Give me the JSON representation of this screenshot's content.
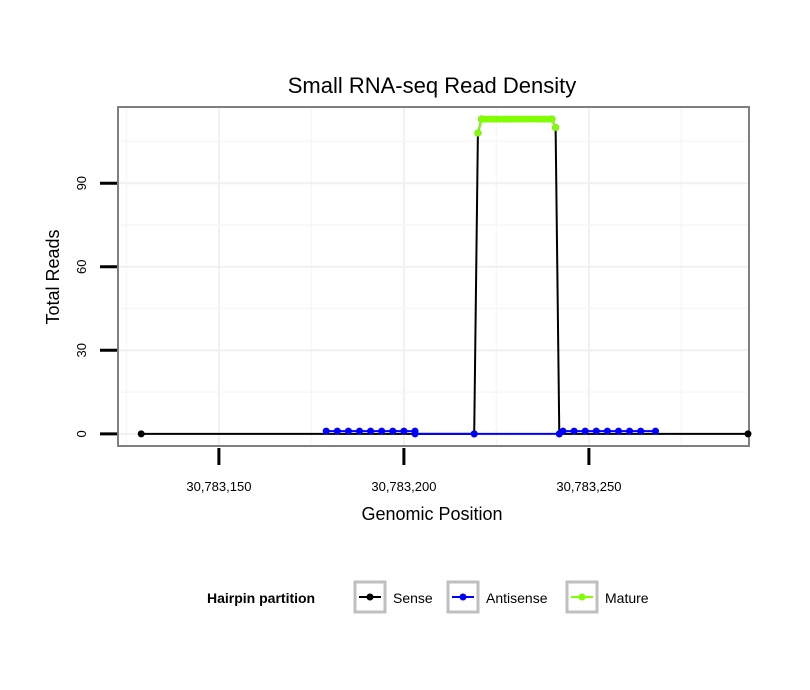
{
  "chart_data": {
    "type": "line",
    "title": "Small RNA-seq Read Density",
    "xlabel": "Genomic Position",
    "ylabel": "Total Reads",
    "xlim": [
      30783123,
      30783293
    ],
    "ylim": [
      -4,
      117
    ],
    "xticks": [
      30783150,
      30783200,
      30783250
    ],
    "xtick_labels": [
      "30,783,150",
      "30,783,200",
      "30,783,250"
    ],
    "yticks": [
      0,
      30,
      60,
      90
    ],
    "ytick_labels": [
      "0",
      "30",
      "60",
      "90"
    ],
    "grid": true,
    "legend": {
      "title": "Hairpin partition",
      "position": "bottom",
      "entries": [
        {
          "name": "Sense",
          "color": "#000000"
        },
        {
          "name": "Antisense",
          "color": "#0000ff"
        },
        {
          "name": "Mature",
          "color": "#7fff00"
        }
      ]
    },
    "series": [
      {
        "name": "Sense",
        "color": "#000000",
        "points": [
          [
            30783129,
            0
          ],
          [
            30783219,
            0
          ],
          [
            30783220,
            108
          ],
          [
            30783221,
            113
          ],
          [
            30783240,
            113
          ],
          [
            30783241,
            110
          ],
          [
            30783242,
            0
          ],
          [
            30783293,
            0
          ]
        ]
      },
      {
        "name": "Antisense",
        "color": "#0000ff",
        "points": [
          [
            30783179,
            1
          ],
          [
            30783182,
            1
          ],
          [
            30783185,
            1
          ],
          [
            30783188,
            1
          ],
          [
            30783191,
            1
          ],
          [
            30783194,
            1
          ],
          [
            30783197,
            1
          ],
          [
            30783200,
            1
          ],
          [
            30783203,
            1
          ],
          [
            30783203,
            0
          ],
          [
            30783219,
            0
          ],
          [
            30783242,
            0
          ],
          [
            30783243,
            1
          ],
          [
            30783246,
            1
          ],
          [
            30783249,
            1
          ],
          [
            30783252,
            1
          ],
          [
            30783255,
            1
          ],
          [
            30783258,
            1
          ],
          [
            30783261,
            1
          ],
          [
            30783264,
            1
          ],
          [
            30783268,
            1
          ]
        ]
      },
      {
        "name": "Mature",
        "color": "#7fff00",
        "points": [
          [
            30783220,
            108
          ],
          [
            30783221,
            113
          ],
          [
            30783222,
            113
          ],
          [
            30783223,
            113
          ],
          [
            30783224,
            113
          ],
          [
            30783225,
            113
          ],
          [
            30783226,
            113
          ],
          [
            30783227,
            113
          ],
          [
            30783228,
            113
          ],
          [
            30783229,
            113
          ],
          [
            30783230,
            113
          ],
          [
            30783231,
            113
          ],
          [
            30783232,
            113
          ],
          [
            30783233,
            113
          ],
          [
            30783234,
            113
          ],
          [
            30783235,
            113
          ],
          [
            30783236,
            113
          ],
          [
            30783237,
            113
          ],
          [
            30783238,
            113
          ],
          [
            30783239,
            113
          ],
          [
            30783240,
            113
          ],
          [
            30783241,
            110
          ]
        ]
      }
    ]
  }
}
